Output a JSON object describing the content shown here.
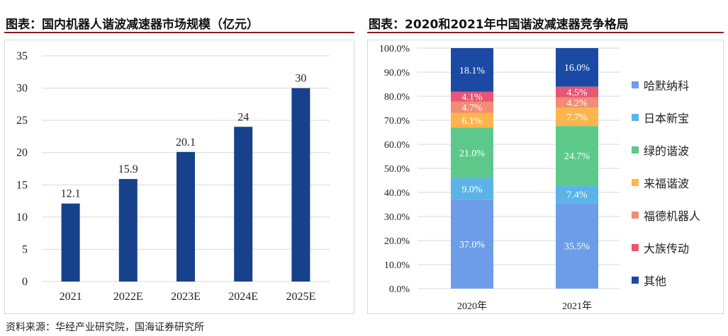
{
  "left": {
    "title": "图表：国内机器人谐波减速器市场规模（亿元）"
  },
  "right": {
    "title": "图表：2020和2021年中国谐波减速器竞争格局"
  },
  "source": "资料来源：华经产业研究院，国海证券研究所",
  "colors": {
    "bar": "#17418b",
    "grid": "#d9d9d9",
    "accent_rule": "#8a1a1a"
  },
  "chart_data": [
    {
      "type": "bar",
      "title": "图表：国内机器人谐波减速器市场规模（亿元）",
      "categories": [
        "2021",
        "2022E",
        "2023E",
        "2024E",
        "2025E"
      ],
      "values": [
        12.1,
        15.9,
        20.1,
        24,
        30
      ],
      "value_labels": [
        "12.1",
        "15.9",
        "20.1",
        "24",
        "30"
      ],
      "ylim": [
        0,
        35
      ],
      "yticks": [
        0,
        5,
        10,
        15,
        20,
        25,
        30,
        35
      ],
      "grid": true,
      "legend": "none"
    },
    {
      "type": "bar",
      "stacked": true,
      "title": "图表：2020和2021年中国谐波减速器竞争格局",
      "categories": [
        "2020年",
        "2021年"
      ],
      "ylim": [
        0,
        100
      ],
      "yticks": [
        "0.0%",
        "10.0%",
        "20.0%",
        "30.0%",
        "40.0%",
        "50.0%",
        "60.0%",
        "70.0%",
        "80.0%",
        "90.0%",
        "100.0%"
      ],
      "legend": "right",
      "series": [
        {
          "name": "哈默纳科",
          "color": "#6d9de8",
          "values": [
            37.0,
            35.5
          ],
          "labels": [
            "37.0%",
            "35.5%"
          ]
        },
        {
          "name": "日本新宝",
          "color": "#5bb3e8",
          "values": [
            9.0,
            7.4
          ],
          "labels": [
            "9.0%",
            "7.4%"
          ]
        },
        {
          "name": "绿的谐波",
          "color": "#5cc98a",
          "values": [
            21.0,
            24.7
          ],
          "labels": [
            "21.0%",
            "24.7%"
          ]
        },
        {
          "name": "来福谐波",
          "color": "#ffb54d",
          "values": [
            6.1,
            7.7
          ],
          "labels": [
            "6.1%",
            "7.7%"
          ]
        },
        {
          "name": "福德机器人",
          "color": "#f28c74",
          "values": [
            4.7,
            4.2
          ],
          "labels": [
            "4.7%",
            "4.2%"
          ]
        },
        {
          "name": "大族传动",
          "color": "#e85674",
          "values": [
            4.1,
            4.5
          ],
          "labels": [
            "4.1%",
            "4.5%"
          ]
        },
        {
          "name": "其他",
          "color": "#1a4aa3",
          "values": [
            18.1,
            16.0
          ],
          "labels": [
            "18.1%",
            "16.0%"
          ]
        }
      ]
    }
  ]
}
